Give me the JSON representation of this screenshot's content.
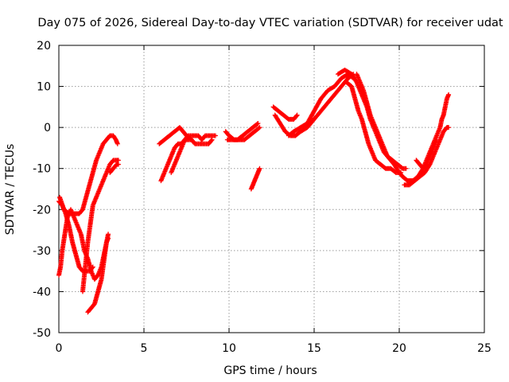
{
  "chart_data": {
    "type": "scatter",
    "title": "Day 075 of 2026, Sidereal Day-to-day VTEC variation (SDTVAR) for receiver udat",
    "xlabel": "GPS time / hours",
    "ylabel": "SDTVAR / TECUs",
    "xlim": [
      0,
      25
    ],
    "ylim": [
      -50,
      20
    ],
    "grid": true,
    "marker": "plus",
    "x_ticks": [
      "0",
      "5",
      "10",
      "15",
      "20",
      "25"
    ],
    "y_ticks": [
      "20",
      "10",
      "0",
      "-10",
      "-20",
      "-30",
      "-40",
      "-50"
    ],
    "series": [
      {
        "name": "SDTVAR",
        "color": "#ff0000",
        "tracks": [
          [
            [
              0.0,
              -36
            ],
            [
              0.1,
              -34
            ],
            [
              0.2,
              -30
            ],
            [
              0.35,
              -26
            ],
            [
              0.5,
              -22
            ],
            [
              0.7,
              -20
            ],
            [
              0.9,
              -22
            ],
            [
              1.1,
              -24
            ],
            [
              1.3,
              -26
            ],
            [
              1.5,
              -30
            ],
            [
              1.7,
              -32
            ],
            [
              1.9,
              -35
            ],
            [
              2.1,
              -37
            ],
            [
              2.3,
              -36
            ],
            [
              2.5,
              -34
            ],
            [
              2.7,
              -30
            ],
            [
              2.9,
              -26
            ]
          ],
          [
            [
              0.0,
              -18
            ],
            [
              0.2,
              -19
            ],
            [
              0.4,
              -21
            ],
            [
              0.6,
              -24
            ],
            [
              0.8,
              -28
            ],
            [
              1.0,
              -31
            ],
            [
              1.2,
              -34
            ],
            [
              1.4,
              -35
            ],
            [
              1.6,
              -35
            ],
            [
              1.8,
              -35
            ],
            [
              2.0,
              -34
            ]
          ],
          [
            [
              1.4,
              -40
            ],
            [
              1.5,
              -36
            ],
            [
              1.6,
              -32
            ],
            [
              1.7,
              -28
            ],
            [
              1.8,
              -25
            ],
            [
              1.9,
              -22
            ],
            [
              2.0,
              -19
            ],
            [
              2.2,
              -17
            ],
            [
              2.4,
              -15
            ],
            [
              2.6,
              -13
            ],
            [
              2.8,
              -11
            ],
            [
              3.0,
              -9
            ],
            [
              3.2,
              -8
            ],
            [
              3.4,
              -8
            ],
            [
              3.5,
              -8
            ]
          ],
          [
            [
              0.05,
              -17
            ],
            [
              0.3,
              -20
            ],
            [
              0.6,
              -21
            ],
            [
              0.9,
              -21
            ],
            [
              1.2,
              -21
            ],
            [
              1.4,
              -20
            ],
            [
              1.6,
              -17
            ],
            [
              1.8,
              -14
            ],
            [
              2.0,
              -11
            ],
            [
              2.2,
              -8
            ],
            [
              2.4,
              -6
            ],
            [
              2.6,
              -4
            ],
            [
              2.8,
              -3
            ],
            [
              3.0,
              -2
            ],
            [
              3.2,
              -2
            ],
            [
              3.35,
              -3
            ],
            [
              3.45,
              -4
            ]
          ],
          [
            [
              1.7,
              -45
            ],
            [
              1.9,
              -44
            ],
            [
              2.1,
              -43
            ],
            [
              2.3,
              -40
            ],
            [
              2.5,
              -37
            ],
            [
              2.6,
              -34
            ],
            [
              2.7,
              -31
            ],
            [
              2.8,
              -28
            ],
            [
              2.9,
              -27
            ]
          ],
          [
            [
              3.0,
              -11
            ],
            [
              3.2,
              -10
            ],
            [
              3.4,
              -9
            ],
            [
              3.5,
              -9
            ]
          ],
          [
            [
              6.0,
              -13
            ],
            [
              6.2,
              -11
            ],
            [
              6.4,
              -9
            ],
            [
              6.6,
              -7
            ],
            [
              6.8,
              -5
            ],
            [
              7.0,
              -4
            ],
            [
              7.2,
              -4
            ],
            [
              7.4,
              -3
            ],
            [
              7.6,
              -3
            ],
            [
              7.8,
              -3
            ],
            [
              8.0,
              -4
            ],
            [
              8.2,
              -4
            ],
            [
              8.4,
              -4
            ],
            [
              8.6,
              -4
            ],
            [
              8.8,
              -4
            ],
            [
              9.0,
              -3
            ]
          ],
          [
            [
              6.6,
              -11
            ],
            [
              6.8,
              -9
            ],
            [
              7.0,
              -7
            ],
            [
              7.2,
              -5
            ],
            [
              7.4,
              -3
            ],
            [
              7.6,
              -2
            ],
            [
              7.8,
              -2
            ],
            [
              8.0,
              -2
            ],
            [
              8.2,
              -2
            ],
            [
              8.4,
              -3
            ],
            [
              8.6,
              -2
            ],
            [
              8.8,
              -2
            ],
            [
              9.0,
              -2
            ],
            [
              9.2,
              -2
            ]
          ],
          [
            [
              5.9,
              -4
            ],
            [
              6.2,
              -3
            ],
            [
              6.5,
              -2
            ],
            [
              6.8,
              -1
            ],
            [
              7.1,
              0
            ],
            [
              7.3,
              -1
            ],
            [
              7.5,
              -2
            ],
            [
              7.8,
              -3
            ]
          ],
          [
            [
              9.8,
              -1
            ],
            [
              10.0,
              -2
            ],
            [
              10.3,
              -3
            ],
            [
              10.6,
              -3
            ],
            [
              10.9,
              -3
            ],
            [
              11.2,
              -2
            ],
            [
              11.5,
              -1
            ],
            [
              11.8,
              0
            ]
          ],
          [
            [
              9.9,
              -3
            ],
            [
              10.2,
              -3
            ],
            [
              10.5,
              -3
            ],
            [
              10.8,
              -2
            ],
            [
              11.1,
              -1
            ],
            [
              11.4,
              0
            ],
            [
              11.7,
              1
            ]
          ],
          [
            [
              11.3,
              -15
            ],
            [
              11.4,
              -14
            ],
            [
              11.5,
              -13
            ],
            [
              11.6,
              -12
            ],
            [
              11.7,
              -11
            ],
            [
              11.8,
              -10
            ]
          ],
          [
            [
              12.6,
              5
            ],
            [
              12.9,
              4
            ],
            [
              13.2,
              3
            ],
            [
              13.5,
              2
            ],
            [
              13.8,
              2
            ],
            [
              14.0,
              3
            ]
          ],
          [
            [
              12.7,
              3
            ],
            [
              13.0,
              1
            ],
            [
              13.3,
              -1
            ],
            [
              13.6,
              -2
            ],
            [
              13.9,
              -2
            ],
            [
              14.2,
              -1
            ],
            [
              14.6,
              0
            ],
            [
              15.0,
              2
            ],
            [
              15.4,
              4
            ],
            [
              15.8,
              6
            ],
            [
              16.2,
              8
            ],
            [
              16.6,
              10
            ],
            [
              17.0,
              12
            ],
            [
              17.3,
              13
            ]
          ],
          [
            [
              13.5,
              -2
            ],
            [
              13.8,
              -1
            ],
            [
              14.2,
              0
            ],
            [
              14.6,
              1
            ],
            [
              15.0,
              4
            ],
            [
              15.4,
              7
            ],
            [
              15.8,
              9
            ],
            [
              16.2,
              10
            ],
            [
              16.6,
              12
            ],
            [
              17.0,
              13
            ],
            [
              17.3,
              12
            ]
          ],
          [
            [
              16.4,
              13
            ],
            [
              16.8,
              14
            ],
            [
              17.2,
              13
            ],
            [
              17.5,
              11
            ],
            [
              17.8,
              8
            ],
            [
              18.1,
              5
            ],
            [
              18.3,
              2
            ],
            [
              18.5,
              0
            ],
            [
              18.7,
              -2
            ],
            [
              18.9,
              -4
            ],
            [
              19.1,
              -6
            ],
            [
              19.3,
              -7
            ],
            [
              19.6,
              -8
            ],
            [
              19.9,
              -9
            ],
            [
              20.2,
              -10
            ],
            [
              20.4,
              -10
            ]
          ],
          [
            [
              16.9,
              11
            ],
            [
              17.2,
              10
            ],
            [
              17.4,
              7
            ],
            [
              17.6,
              4
            ],
            [
              17.8,
              2
            ],
            [
              18.0,
              -1
            ],
            [
              18.2,
              -4
            ],
            [
              18.4,
              -6
            ],
            [
              18.6,
              -8
            ],
            [
              18.9,
              -9
            ],
            [
              19.2,
              -10
            ],
            [
              19.5,
              -10
            ],
            [
              19.8,
              -11
            ],
            [
              20.1,
              -11
            ]
          ],
          [
            [
              17.5,
              13
            ],
            [
              17.7,
              11
            ],
            [
              17.9,
              9
            ],
            [
              18.1,
              6
            ],
            [
              18.3,
              3
            ],
            [
              18.5,
              1
            ],
            [
              18.7,
              -1
            ],
            [
              18.9,
              -3
            ],
            [
              19.1,
              -5
            ],
            [
              19.3,
              -7
            ],
            [
              19.5,
              -8
            ],
            [
              19.7,
              -9
            ],
            [
              20.0,
              -11
            ],
            [
              20.2,
              -12
            ],
            [
              20.5,
              -13
            ],
            [
              20.8,
              -13
            ],
            [
              21.1,
              -12
            ],
            [
              21.4,
              -11
            ]
          ],
          [
            [
              20.3,
              -14
            ],
            [
              20.6,
              -14
            ],
            [
              20.9,
              -13
            ],
            [
              21.2,
              -12
            ],
            [
              21.5,
              -11
            ],
            [
              21.8,
              -9
            ],
            [
              22.0,
              -7
            ],
            [
              22.2,
              -5
            ],
            [
              22.4,
              -3
            ],
            [
              22.6,
              -1
            ],
            [
              22.8,
              0
            ],
            [
              22.9,
              0
            ]
          ],
          [
            [
              20.5,
              -13
            ],
            [
              20.8,
              -13
            ],
            [
              21.1,
              -12
            ],
            [
              21.4,
              -10
            ],
            [
              21.6,
              -8
            ],
            [
              21.8,
              -6
            ],
            [
              22.0,
              -4
            ],
            [
              22.2,
              -2
            ],
            [
              22.4,
              0
            ],
            [
              22.5,
              2
            ],
            [
              22.6,
              3
            ],
            [
              22.7,
              5
            ],
            [
              22.8,
              7
            ],
            [
              22.9,
              8
            ]
          ],
          [
            [
              21.0,
              -8
            ],
            [
              21.2,
              -9
            ],
            [
              21.4,
              -10
            ],
            [
              21.6,
              -9
            ],
            [
              21.8,
              -7
            ],
            [
              22.0,
              -5
            ],
            [
              22.2,
              -3
            ]
          ]
        ]
      }
    ]
  }
}
